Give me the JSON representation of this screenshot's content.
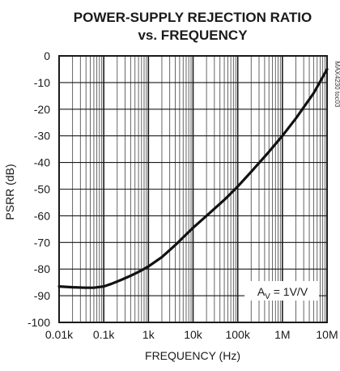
{
  "chart_data": {
    "type": "line",
    "title_line1": "POWER-SUPPLY REJECTION RATIO",
    "title_line2": "vs. FREQUENCY",
    "xlabel": "FREQUENCY (Hz)",
    "ylabel": "PSRR (dB)",
    "x_scale": "log",
    "xlim": [
      10,
      10000000
    ],
    "ylim": [
      -100,
      0
    ],
    "x_ticks": [
      {
        "value": 10,
        "label": "0.01k"
      },
      {
        "value": 100,
        "label": "0.1k"
      },
      {
        "value": 1000,
        "label": "1k"
      },
      {
        "value": 10000,
        "label": "10k"
      },
      {
        "value": 100000,
        "label": "100k"
      },
      {
        "value": 1000000,
        "label": "1M"
      },
      {
        "value": 10000000,
        "label": "10M"
      }
    ],
    "y_ticks": [
      {
        "value": 0,
        "label": "0"
      },
      {
        "value": -10,
        "label": "-10"
      },
      {
        "value": -20,
        "label": "-20"
      },
      {
        "value": -30,
        "label": "-30"
      },
      {
        "value": -40,
        "label": "-40"
      },
      {
        "value": -50,
        "label": "-50"
      },
      {
        "value": -60,
        "label": "-60"
      },
      {
        "value": -70,
        "label": "-70"
      },
      {
        "value": -80,
        "label": "-80"
      },
      {
        "value": -90,
        "label": "-90"
      },
      {
        "value": -100,
        "label": "-100"
      }
    ],
    "grid": true,
    "series": [
      {
        "points": [
          [
            10,
            -86.5
          ],
          [
            20,
            -86.8
          ],
          [
            40,
            -87.0
          ],
          [
            60,
            -87.0
          ],
          [
            100,
            -86.5
          ],
          [
            150,
            -85.5
          ],
          [
            250,
            -84.0
          ],
          [
            400,
            -82.5
          ],
          [
            700,
            -80.5
          ],
          [
            1000,
            -79.0
          ],
          [
            2000,
            -75.5
          ],
          [
            4000,
            -71.0
          ],
          [
            7000,
            -67.0
          ],
          [
            10000,
            -64.5
          ],
          [
            20000,
            -60.0
          ],
          [
            50000,
            -54.0
          ],
          [
            100000,
            -49.0
          ],
          [
            200000,
            -43.5
          ],
          [
            500000,
            -36.0
          ],
          [
            1000000,
            -30.0
          ],
          [
            2000000,
            -23.5
          ],
          [
            5000000,
            -14.0
          ],
          [
            10000000,
            -5.0
          ]
        ]
      }
    ],
    "annotation_base": "A",
    "annotation_sub": "V",
    "annotation_rest": " = 1V/V",
    "side_tag": "MAX4230 toc03"
  }
}
